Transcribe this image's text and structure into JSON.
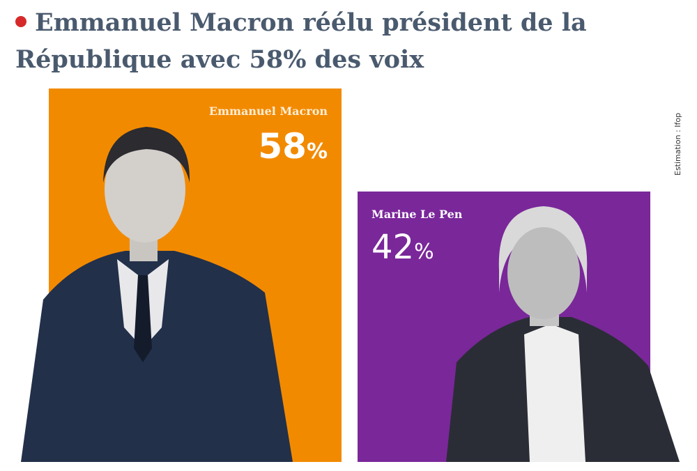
{
  "chart_data": {
    "type": "bar",
    "title": "Emmanuel Macron réélu président de la République avec 58% des voix",
    "source": "Estimation : Ifop",
    "unit": "%",
    "ylim": [
      0,
      58
    ],
    "categories": [
      "Emmanuel Macron",
      "Marine Le Pen"
    ],
    "values": [
      58,
      42
    ],
    "colors": [
      "#f28a00",
      "#7a279a"
    ],
    "bullet_color": "#d62a2a",
    "pct_styles": [
      "bold",
      "light"
    ]
  }
}
